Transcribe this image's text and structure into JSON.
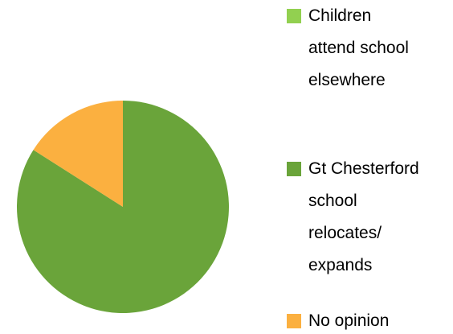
{
  "chart_data": {
    "type": "pie",
    "categories": [
      "Children attend school elsewhere",
      "Gt Chesterford school relocates/ expands",
      "No opinion"
    ],
    "values": [
      0,
      84,
      16
    ],
    "colors": [
      "#92d050",
      "#6aa43a",
      "#fbb040"
    ],
    "legend": "right"
  }
}
